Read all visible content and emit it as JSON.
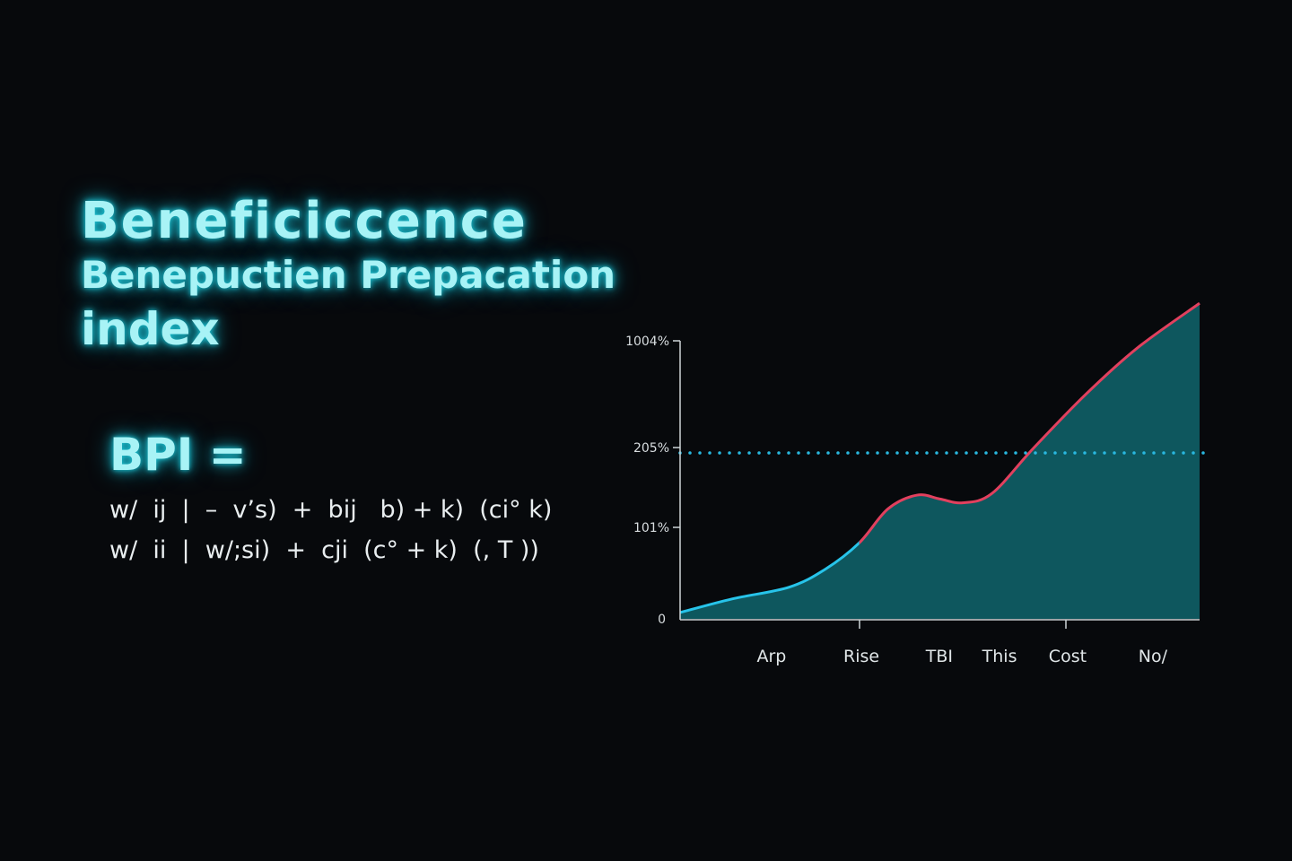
{
  "title": {
    "line1": "Beneficiccence",
    "line2": "Benepuctien Prepacation",
    "line3": "index"
  },
  "formula": {
    "lhs": "BPI  =",
    "line1": "w/  ij  |  –  v’s)  +  bij   b) + k)  (ci° k)",
    "line2": "w/  ii  |  w/;si)  +  cji  (c° + k)  (, T ))"
  },
  "chart_data": {
    "type": "area",
    "title": "",
    "xlabel": "",
    "ylabel": "",
    "y_ticks": [
      {
        "label": "0",
        "value": 0
      },
      {
        "label": "101%",
        "value": 101
      },
      {
        "label": "205%",
        "value": 205
      },
      {
        "label": "1004%",
        "value": 1004
      }
    ],
    "x_categories": [
      {
        "label": "Arp",
        "x": 17.6
      },
      {
        "label": "Rise",
        "x": 34.9
      },
      {
        "label": "TBI",
        "x": 49.9
      },
      {
        "label": "This",
        "x": 61.5
      },
      {
        "label": "Cost",
        "x": 74.6
      },
      {
        "label": "No/",
        "x": 91
      }
    ],
    "xlim": [
      0,
      100
    ],
    "reference_line": {
      "value": 205,
      "style": "dotted",
      "color": "#29b8e0"
    },
    "series": [
      {
        "name": "BPI",
        "x": [
          0,
          10,
          21,
          28,
          34.5,
          40,
          45.6,
          50,
          54.4,
          60,
          68,
          78,
          88,
          100
        ],
        "y": [
          7,
          22,
          35,
          55,
          84,
          125,
          143,
          138,
          133,
          145,
          204,
          600,
          950,
          1285
        ]
      }
    ],
    "colors": {
      "low": "#27c4ea",
      "high": "#e2405e",
      "fill": "#0f5c63"
    },
    "split_x": 34.5
  }
}
